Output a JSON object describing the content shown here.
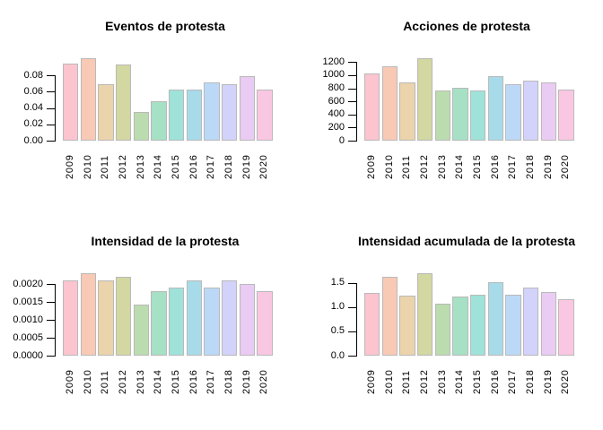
{
  "figure": {
    "background": "#ffffff",
    "text_color": "#000000",
    "bar_border_color": "#b9b9b9",
    "bar_fill_colors": [
      "#fbc4cf",
      "#f8c9b5",
      "#ebd3ab",
      "#d3d7a1",
      "#bbdcae",
      "#a6e0c5",
      "#9fe2d9",
      "#a7dbea",
      "#bbd9f6",
      "#d3d2fb",
      "#eacbf3",
      "#fac7e3"
    ],
    "layout_hints": {
      "grid": false,
      "legend": false,
      "panels": "2x2",
      "x_labels_rotated": true
    }
  },
  "chart_data": [
    {
      "type": "bar",
      "title": "Eventos de protesta",
      "xlabel": "",
      "ylabel": "",
      "categories": [
        "2009",
        "2010",
        "2011",
        "2012",
        "2013",
        "2014",
        "2015",
        "2016",
        "2017",
        "2018",
        "2019",
        "2020"
      ],
      "values": [
        0.094,
        0.101,
        0.069,
        0.093,
        0.035,
        0.048,
        0.062,
        0.062,
        0.071,
        0.069,
        0.079,
        0.062
      ],
      "ylim": [
        0,
        0.105
      ],
      "yticks": [
        {
          "label": "0.00",
          "value": 0
        },
        {
          "label": "0.02",
          "value": 0.02
        },
        {
          "label": "0.04",
          "value": 0.04
        },
        {
          "label": "0.06",
          "value": 0.06
        },
        {
          "label": "0.08",
          "value": 0.08
        }
      ]
    },
    {
      "type": "bar",
      "title": "Acciones de protesta",
      "xlabel": "",
      "ylabel": "",
      "categories": [
        "2009",
        "2010",
        "2011",
        "2012",
        "2013",
        "2014",
        "2015",
        "2016",
        "2017",
        "2018",
        "2019",
        "2020"
      ],
      "values": [
        1030,
        1140,
        890,
        1260,
        770,
        810,
        770,
        980,
        860,
        920,
        890,
        780
      ],
      "ylim": [
        0,
        1310
      ],
      "yticks": [
        {
          "label": "0",
          "value": 0
        },
        {
          "label": "200",
          "value": 200
        },
        {
          "label": "400",
          "value": 400
        },
        {
          "label": "600",
          "value": 600
        },
        {
          "label": "800",
          "value": 800
        },
        {
          "label": "1000",
          "value": 1000
        },
        {
          "label": "1200",
          "value": 1200
        }
      ]
    },
    {
      "type": "bar",
      "title": "Intensidad de la protesta",
      "xlabel": "",
      "ylabel": "",
      "categories": [
        "2009",
        "2010",
        "2011",
        "2012",
        "2013",
        "2014",
        "2015",
        "2016",
        "2017",
        "2018",
        "2019",
        "2020"
      ],
      "values": [
        0.00212,
        0.0023,
        0.00212,
        0.00222,
        0.00143,
        0.0018,
        0.00192,
        0.00212,
        0.00192,
        0.00212,
        0.00202,
        0.0018
      ],
      "ylim": [
        0,
        0.0024
      ],
      "yticks": [
        {
          "label": "0.0000",
          "value": 0
        },
        {
          "label": "0.0005",
          "value": 0.0005
        },
        {
          "label": "0.0010",
          "value": 0.001
        },
        {
          "label": "0.0015",
          "value": 0.0015
        },
        {
          "label": "0.0020",
          "value": 0.002
        }
      ]
    },
    {
      "type": "bar",
      "title": "Intensidad acumulada de la protesta",
      "xlabel": "",
      "ylabel": "",
      "categories": [
        "2009",
        "2010",
        "2011",
        "2012",
        "2013",
        "2014",
        "2015",
        "2016",
        "2017",
        "2018",
        "2019",
        "2020"
      ],
      "values": [
        1.29,
        1.62,
        1.24,
        1.7,
        1.07,
        1.21,
        1.25,
        1.51,
        1.25,
        1.41,
        1.31,
        1.17
      ],
      "ylim": [
        0,
        1.77
      ],
      "yticks": [
        {
          "label": "0.0",
          "value": 0
        },
        {
          "label": "0.5",
          "value": 0.5
        },
        {
          "label": "1.0",
          "value": 1.0
        },
        {
          "label": "1.5",
          "value": 1.5
        }
      ]
    }
  ]
}
